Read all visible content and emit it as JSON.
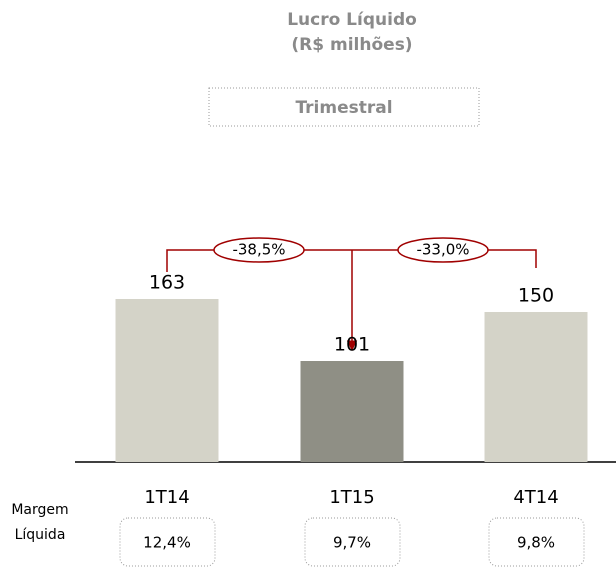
{
  "chart_data": {
    "type": "bar",
    "title": "Lucro Líquido",
    "subtitle": "(R$ milhões)",
    "period": "Trimestral",
    "categories": [
      "1T14",
      "1T15",
      "4T14"
    ],
    "values": [
      163,
      101,
      150
    ],
    "colors": [
      "#d4d3c8",
      "#8f8f85",
      "#d4d3c8"
    ],
    "ylim": [
      0,
      200
    ],
    "annotations": [
      {
        "value": -38.5,
        "label": "-38,5%"
      },
      {
        "value": -33.0,
        "label": "-33,0%"
      }
    ],
    "margin_label": [
      "Margem",
      "Líquida"
    ],
    "margin": {
      "values": [
        12.4,
        9.7,
        9.8
      ],
      "value_labels": [
        "12,4%",
        "9,7%",
        "9,8%"
      ]
    }
  }
}
